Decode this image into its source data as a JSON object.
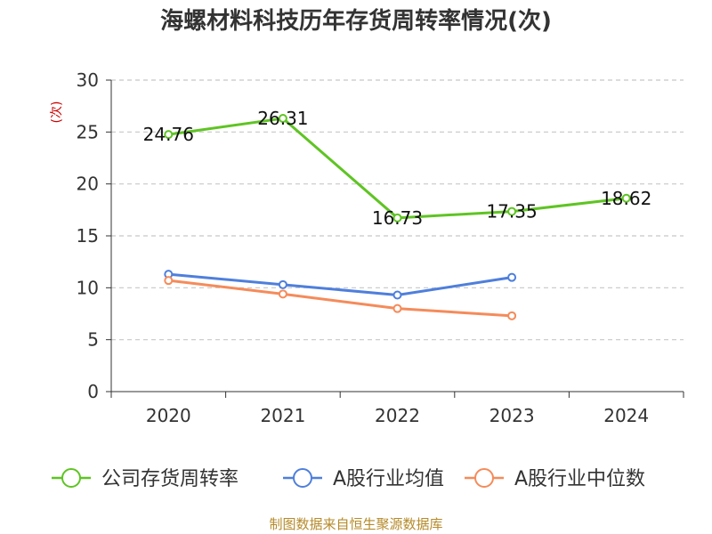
{
  "chart_data": {
    "type": "line",
    "title": "海螺材料科技历年存货周转率情况(次)",
    "ylabel": "(次)",
    "categories": [
      "2020",
      "2021",
      "2022",
      "2023",
      "2024"
    ],
    "ylim": [
      0,
      30
    ],
    "yticks": [
      0,
      5,
      10,
      15,
      20,
      25,
      30
    ],
    "grid": true,
    "legend_position": "bottom",
    "series": [
      {
        "name": "公司存货周转率",
        "color": "#5fc423",
        "values": [
          24.76,
          26.31,
          16.73,
          17.35,
          18.62
        ],
        "show_labels": true
      },
      {
        "name": "A股行业均值",
        "color": "#4e7fdc",
        "values": [
          11.3,
          10.3,
          9.3,
          11.0,
          null
        ],
        "show_labels": false
      },
      {
        "name": "A股行业中位数",
        "color": "#f58b5a",
        "values": [
          10.7,
          9.4,
          8.0,
          7.3,
          null
        ],
        "show_labels": false
      }
    ]
  },
  "source": "制图数据来自恒生聚源数据库"
}
